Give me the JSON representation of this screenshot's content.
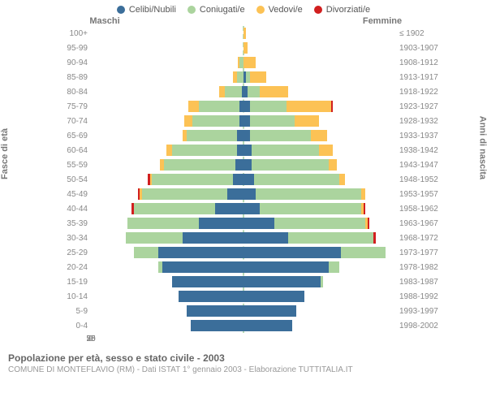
{
  "chart": {
    "type": "population-pyramid",
    "background_color": "#ffffff",
    "grid_color": "#dddddd",
    "font_family": "Arial",
    "label_color": "#888888",
    "axis_title_color": "#777777",
    "centerline_color": "#b7dab7",
    "x_max": 75,
    "x_ticks": [
      75,
      50,
      25,
      0,
      25,
      50,
      75
    ],
    "legend": [
      {
        "label": "Celibi/Nubili",
        "color": "#3b6e9a"
      },
      {
        "label": "Coniugati/e",
        "color": "#abd49e"
      },
      {
        "label": "Vedovi/e",
        "color": "#fcc255"
      },
      {
        "label": "Divorziati/e",
        "color": "#d11f1f"
      }
    ],
    "male_label": "Maschi",
    "female_label": "Femmine",
    "y_axis_left_label": "Fasce di età",
    "y_axis_right_label": "Anni di nascita",
    "rows": [
      {
        "age": "100+",
        "birth": "≤ 1902",
        "m": {
          "cel": 0,
          "con": 0,
          "ved": 0,
          "div": 0
        },
        "f": {
          "cel": 0,
          "con": 0,
          "ved": 1,
          "div": 0
        }
      },
      {
        "age": "95-99",
        "birth": "1903-1907",
        "m": {
          "cel": 0,
          "con": 0,
          "ved": 0,
          "div": 0
        },
        "f": {
          "cel": 0,
          "con": 0,
          "ved": 2,
          "div": 0
        }
      },
      {
        "age": "90-94",
        "birth": "1908-1912",
        "m": {
          "cel": 0,
          "con": 2,
          "ved": 1,
          "div": 0
        },
        "f": {
          "cel": 0,
          "con": 0,
          "ved": 6,
          "div": 0
        }
      },
      {
        "age": "85-89",
        "birth": "1913-1917",
        "m": {
          "cel": 0,
          "con": 3,
          "ved": 2,
          "div": 0
        },
        "f": {
          "cel": 1,
          "con": 2,
          "ved": 8,
          "div": 0
        }
      },
      {
        "age": "80-84",
        "birth": "1918-1922",
        "m": {
          "cel": 1,
          "con": 8,
          "ved": 3,
          "div": 0
        },
        "f": {
          "cel": 2,
          "con": 6,
          "ved": 14,
          "div": 0
        }
      },
      {
        "age": "75-79",
        "birth": "1923-1927",
        "m": {
          "cel": 2,
          "con": 20,
          "ved": 5,
          "div": 0
        },
        "f": {
          "cel": 3,
          "con": 18,
          "ved": 22,
          "div": 1
        }
      },
      {
        "age": "70-74",
        "birth": "1928-1932",
        "m": {
          "cel": 2,
          "con": 23,
          "ved": 4,
          "div": 0
        },
        "f": {
          "cel": 3,
          "con": 22,
          "ved": 12,
          "div": 0
        }
      },
      {
        "age": "65-69",
        "birth": "1933-1937",
        "m": {
          "cel": 3,
          "con": 25,
          "ved": 2,
          "div": 0
        },
        "f": {
          "cel": 3,
          "con": 30,
          "ved": 8,
          "div": 0
        }
      },
      {
        "age": "60-64",
        "birth": "1938-1942",
        "m": {
          "cel": 3,
          "con": 32,
          "ved": 3,
          "div": 0
        },
        "f": {
          "cel": 4,
          "con": 33,
          "ved": 7,
          "div": 0
        }
      },
      {
        "age": "55-59",
        "birth": "1943-1947",
        "m": {
          "cel": 4,
          "con": 35,
          "ved": 2,
          "div": 0
        },
        "f": {
          "cel": 4,
          "con": 38,
          "ved": 4,
          "div": 0
        }
      },
      {
        "age": "50-54",
        "birth": "1948-1952",
        "m": {
          "cel": 5,
          "con": 40,
          "ved": 1,
          "div": 1
        },
        "f": {
          "cel": 5,
          "con": 42,
          "ved": 3,
          "div": 0
        }
      },
      {
        "age": "45-49",
        "birth": "1953-1957",
        "m": {
          "cel": 8,
          "con": 42,
          "ved": 1,
          "div": 1
        },
        "f": {
          "cel": 6,
          "con": 52,
          "ved": 2,
          "div": 0
        }
      },
      {
        "age": "40-44",
        "birth": "1958-1962",
        "m": {
          "cel": 14,
          "con": 40,
          "ved": 0,
          "div": 1
        },
        "f": {
          "cel": 8,
          "con": 50,
          "ved": 1,
          "div": 1
        }
      },
      {
        "age": "35-39",
        "birth": "1963-1967",
        "m": {
          "cel": 22,
          "con": 35,
          "ved": 0,
          "div": 0
        },
        "f": {
          "cel": 15,
          "con": 45,
          "ved": 1,
          "div": 1
        }
      },
      {
        "age": "30-34",
        "birth": "1968-1972",
        "m": {
          "cel": 30,
          "con": 28,
          "ved": 0,
          "div": 0
        },
        "f": {
          "cel": 22,
          "con": 42,
          "ved": 0,
          "div": 1
        }
      },
      {
        "age": "25-29",
        "birth": "1973-1977",
        "m": {
          "cel": 42,
          "con": 12,
          "ved": 0,
          "div": 0
        },
        "f": {
          "cel": 48,
          "con": 22,
          "ved": 0,
          "div": 0
        }
      },
      {
        "age": "20-24",
        "birth": "1978-1982",
        "m": {
          "cel": 40,
          "con": 2,
          "ved": 0,
          "div": 0
        },
        "f": {
          "cel": 42,
          "con": 5,
          "ved": 0,
          "div": 0
        }
      },
      {
        "age": "15-19",
        "birth": "1983-1987",
        "m": {
          "cel": 35,
          "con": 0,
          "ved": 0,
          "div": 0
        },
        "f": {
          "cel": 38,
          "con": 1,
          "ved": 0,
          "div": 0
        }
      },
      {
        "age": "10-14",
        "birth": "1988-1992",
        "m": {
          "cel": 32,
          "con": 0,
          "ved": 0,
          "div": 0
        },
        "f": {
          "cel": 30,
          "con": 0,
          "ved": 0,
          "div": 0
        }
      },
      {
        "age": "5-9",
        "birth": "1993-1997",
        "m": {
          "cel": 28,
          "con": 0,
          "ved": 0,
          "div": 0
        },
        "f": {
          "cel": 26,
          "con": 0,
          "ved": 0,
          "div": 0
        }
      },
      {
        "age": "0-4",
        "birth": "1998-2002",
        "m": {
          "cel": 26,
          "con": 0,
          "ved": 0,
          "div": 0
        },
        "f": {
          "cel": 24,
          "con": 0,
          "ved": 0,
          "div": 0
        }
      }
    ]
  },
  "footer": {
    "title": "Popolazione per età, sesso e stato civile - 2003",
    "subtitle": "COMUNE DI MONTEFLAVIO (RM) - Dati ISTAT 1° gennaio 2003 - Elaborazione TUTTITALIA.IT"
  }
}
